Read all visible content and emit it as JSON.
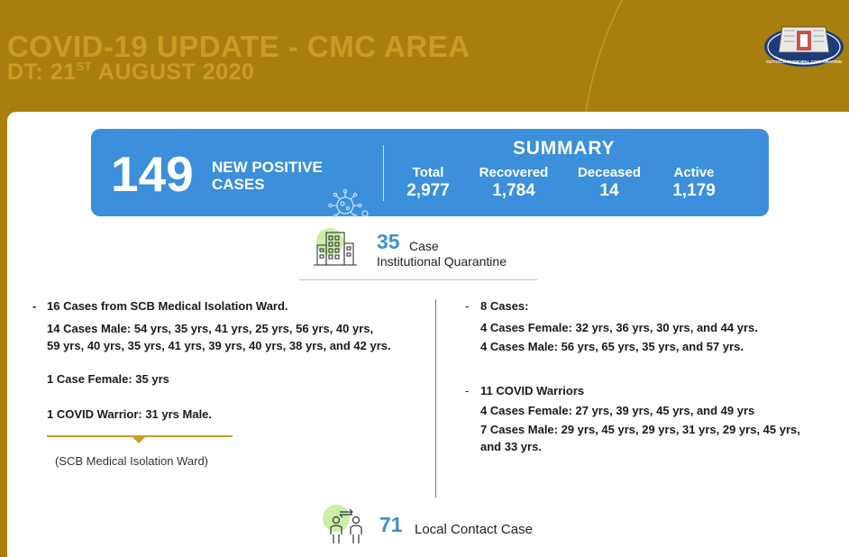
{
  "header": {
    "title": "COVID-19 UPDATE - CMC AREA",
    "date_prefix": "DT: 21",
    "date_suffix": "ST",
    "date_rest": " AUGUST 2020",
    "logo_text": "CUTTACK MUNICIPAL CORPORATION"
  },
  "banner": {
    "new_positive": "149",
    "new_positive_label": "NEW POSITIVE CASES",
    "summary_title": "SUMMARY",
    "stats": [
      {
        "label": "Total",
        "value": "2,977"
      },
      {
        "label": "Recovered",
        "value": "1,784"
      },
      {
        "label": "Deceased",
        "value": "14"
      },
      {
        "label": "Active",
        "value": "1,179"
      }
    ]
  },
  "quarantine": {
    "count": "35",
    "unit": "Case",
    "label": "Institutional Quarantine"
  },
  "left": {
    "heading": "16 Cases from SCB Medical Isolation Ward.",
    "male_line1": "14 Cases Male: 54 yrs, 35 yrs, 41 yrs, 25 yrs, 56 yrs, 40 yrs,",
    "male_line2": "59 yrs, 40 yrs, 35 yrs, 41 yrs, 39 yrs, 40 yrs, 38 yrs, and 42 yrs.",
    "female": "1 Case Female: 35 yrs",
    "warrior": "1 COVID Warrior: 31 yrs Male.",
    "source": "(SCB Medical Isolation Ward)"
  },
  "right": {
    "group1_heading": "8 Cases:",
    "group1_female": "4 Cases Female: 32 yrs, 36 yrs, 30 yrs, and 44 yrs.",
    "group1_male": "4 Cases Male: 56 yrs, 65 yrs, 35 yrs, and 57 yrs.",
    "group2_heading": "11 COVID Warriors",
    "group2_female": "4 Cases Female: 27 yrs, 39 yrs, 45 yrs, and 49 yrs",
    "group2_male_line1": "7 Cases Male: 29 yrs, 45 yrs, 29 yrs, 31 yrs, 29 yrs, 45 yrs,",
    "group2_male_line2": "and 33 yrs."
  },
  "local_contact": {
    "count": "71",
    "label": "Local Contact Case"
  },
  "colors": {
    "background": "#a87f0e",
    "accent_gold": "#c99d24",
    "banner_blue": "#3b8fdb"
  },
  "icons": [
    "cuttack-municipal-logo",
    "virus-icon",
    "building-icon",
    "people-contact-icon"
  ]
}
